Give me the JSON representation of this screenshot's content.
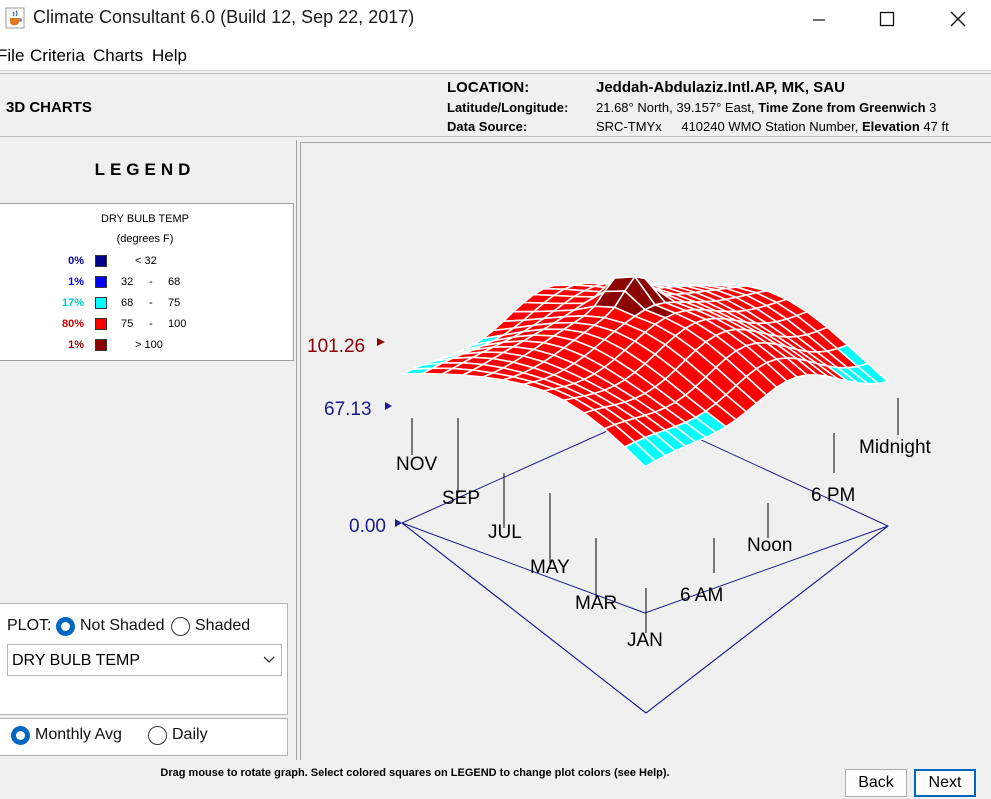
{
  "window": {
    "title": "Climate Consultant 6.0 (Build 12, Sep 22, 2017)"
  },
  "menu": [
    "File",
    "Criteria",
    "Charts",
    "Help"
  ],
  "header": {
    "panel_title": "3D CHARTS",
    "location_label": "LOCATION:",
    "location_value": "Jeddah-Abdulaziz.Intl.AP, MK, SAU",
    "latlong_label": "Latitude/Longitude:",
    "latlong_value": "21.68° North, 39.157° East,",
    "timezone_label": "Time Zone from Greenwich",
    "timezone_value": "3",
    "source_label": "Data Source:",
    "source_value": "SRC-TMYx",
    "station_value": "410240 WMO Station Number,",
    "elevation_label": "Elevation",
    "elevation_value": "47 ft"
  },
  "legend": {
    "heading": "LEGEND",
    "title": "DRY BULB TEMP",
    "units": "(degrees F)",
    "rows": [
      {
        "pct": "0%",
        "color": "#00008b",
        "pct_color": "#00008b",
        "lo": "< 32",
        "dash": "",
        "hi": ""
      },
      {
        "pct": "1%",
        "color": "#0000ff",
        "pct_color": "#0000ff",
        "lo": "32",
        "dash": "-",
        "hi": "68"
      },
      {
        "pct": "17%",
        "color": "#00ffff",
        "pct_color": "#00c8c8",
        "lo": "68",
        "dash": "-",
        "hi": "75"
      },
      {
        "pct": "80%",
        "color": "#ff0000",
        "pct_color": "#cc0000",
        "lo": "75",
        "dash": "-",
        "hi": "100"
      },
      {
        "pct": "1%",
        "color": "#8b0000",
        "pct_color": "#8b0000",
        "lo": "> 100",
        "dash": "",
        "hi": ""
      }
    ]
  },
  "plot": {
    "label": "PLOT:",
    "option_not_shaded": "Not Shaded",
    "option_shaded": "Shaded",
    "selected_variable": "DRY BULB TEMP",
    "option_monthly": "Monthly Avg",
    "option_daily": "Daily"
  },
  "chart": {
    "z_max": "101.26",
    "z_mid": "67.13",
    "z_zero": "0.00",
    "month_labels": [
      "NOV",
      "SEP",
      "JUL",
      "MAY",
      "MAR",
      "JAN"
    ],
    "hour_labels": [
      "6 AM",
      "Noon",
      "6 PM",
      "Midnight"
    ]
  },
  "footer": {
    "hint": "Drag mouse to rotate graph.  Select colored squares on LEGEND to change plot colors (see Help).",
    "back": "Back",
    "next": "Next"
  },
  "colors": {
    "surface_hot": "#ff0000",
    "surface_cool": "#00ffff",
    "surface_cold": "#0000ff",
    "surface_peak": "#8b0000",
    "axis": "#1a1a8c"
  }
}
